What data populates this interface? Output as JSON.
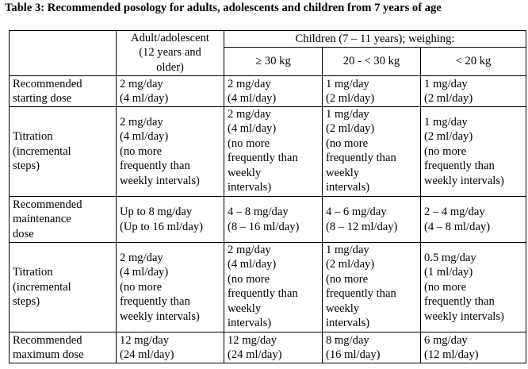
{
  "title": "Table 3: Recommended posology for adults, adolescents and children from 7 years of age",
  "header": {
    "adult": "Adult/adolescent\n(12 years and\nolder)",
    "children_group": "Children (7 – 11 years); weighing:",
    "weights": [
      "≥ 30 kg",
      "20 - < 30 kg",
      "< 20 kg"
    ]
  },
  "rows": [
    {
      "label": "Recommended\nstarting dose",
      "cells": [
        "2 mg/day\n(4 ml/day)",
        "2 mg/day\n(4 ml/day)",
        "1 mg/day\n(2 ml/day)",
        "1 mg/day\n(2 ml/day)"
      ]
    },
    {
      "label": "Titration\n(incremental\nsteps)",
      "cells": [
        "2 mg/day\n(4 ml/day)\n(no more\nfrequently than\nweekly intervals)",
        "2 mg/day\n(4 ml/day)\n(no more\nfrequently than\nweekly\nintervals)",
        "1 mg/day\n(2 ml/day)\n(no more\nfrequently than\nweekly\nintervals)",
        "1 mg/day\n(2 ml/day)\n(no more\nfrequently than\nweekly intervals)"
      ]
    },
    {
      "label": "Recommended\nmaintenance\ndose",
      "cells": [
        "Up to 8 mg/day\n(Up to 16 ml/day)",
        "4 – 8 mg/day\n(8 – 16 ml/day)",
        "4 – 6 mg/day\n(8 – 12 ml/day)",
        "2 – 4 mg/day\n(4 – 8 ml/day)"
      ]
    },
    {
      "label": "Titration\n(incremental\nsteps)",
      "cells": [
        "2 mg/day\n(4 ml/day)\n(no more\nfrequently than\nweekly intervals)",
        "2 mg/day\n(4 ml/day)\n(no more\nfrequently than\nweekly\nintervals)",
        "1 mg/day\n(2 ml/day)\n(no more\nfrequently than\nweekly\nintervals)",
        "0.5 mg/day\n(1 ml/day)\n(no more\nfrequently than\nweekly intervals)"
      ]
    },
    {
      "label": "Recommended\nmaximum dose",
      "cells": [
        "12 mg/day\n(24 ml/day)",
        "12 mg/day\n(24 ml/day)",
        "8 mg/day\n(16 ml/day)",
        "6 mg/day\n(12 ml/day)"
      ]
    }
  ]
}
